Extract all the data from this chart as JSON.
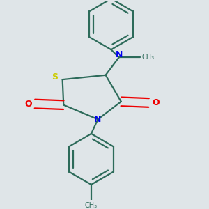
{
  "background_color": "#dfe5e8",
  "bond_color": "#2d6b5a",
  "nitrogen_color": "#0000ee",
  "sulfur_color": "#cccc00",
  "oxygen_color": "#ee0000",
  "line_width": 1.6,
  "double_sep": 0.018,
  "hex_r": 0.115,
  "fig_xlim": [
    0.05,
    0.95
  ],
  "fig_ylim": [
    0.05,
    0.95
  ]
}
